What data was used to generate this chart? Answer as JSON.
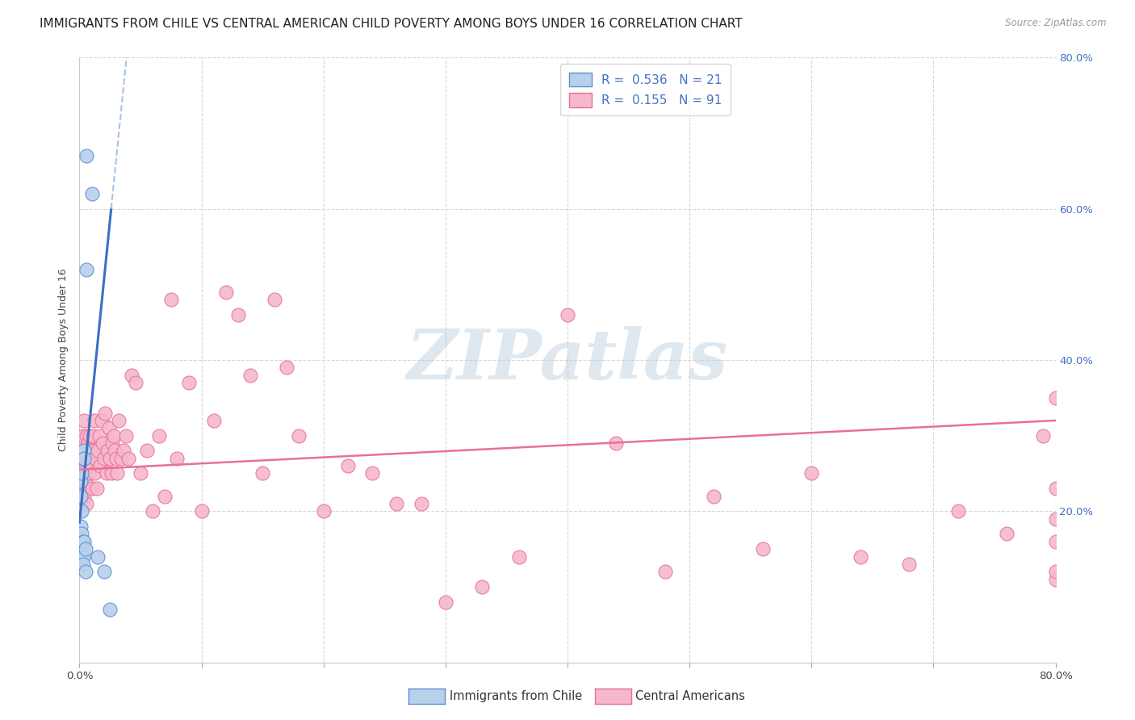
{
  "title": "IMMIGRANTS FROM CHILE VS CENTRAL AMERICAN CHILD POVERTY AMONG BOYS UNDER 16 CORRELATION CHART",
  "source": "Source: ZipAtlas.com",
  "ylabel": "Child Poverty Among Boys Under 16",
  "legend_chile_R": "0.536",
  "legend_chile_N": "21",
  "legend_ca_R": "0.155",
  "legend_ca_N": "91",
  "legend_label_chile": "Immigrants from Chile",
  "legend_label_ca": "Central Americans",
  "blue_fill": "#b8d0ea",
  "blue_edge": "#5b8fd4",
  "blue_line": "#3a6fc4",
  "pink_fill": "#f5b8cc",
  "pink_edge": "#e87098",
  "pink_line": "#e87098",
  "dash_color": "#aac4e0",
  "scatter_chile_x": [
    0.001,
    0.001,
    0.001,
    0.001,
    0.002,
    0.002,
    0.002,
    0.003,
    0.003,
    0.003,
    0.004,
    0.004,
    0.004,
    0.005,
    0.005,
    0.006,
    0.006,
    0.01,
    0.015,
    0.02,
    0.025
  ],
  "scatter_chile_y": [
    0.24,
    0.22,
    0.18,
    0.16,
    0.25,
    0.2,
    0.17,
    0.16,
    0.14,
    0.13,
    0.28,
    0.27,
    0.16,
    0.15,
    0.12,
    0.52,
    0.67,
    0.62,
    0.14,
    0.12,
    0.07
  ],
  "scatter_ca_x": [
    0.001,
    0.001,
    0.002,
    0.002,
    0.003,
    0.003,
    0.004,
    0.004,
    0.005,
    0.005,
    0.006,
    0.006,
    0.007,
    0.007,
    0.008,
    0.008,
    0.009,
    0.01,
    0.01,
    0.011,
    0.011,
    0.012,
    0.012,
    0.013,
    0.014,
    0.015,
    0.016,
    0.017,
    0.018,
    0.019,
    0.02,
    0.021,
    0.022,
    0.023,
    0.024,
    0.025,
    0.026,
    0.027,
    0.028,
    0.029,
    0.03,
    0.031,
    0.032,
    0.034,
    0.036,
    0.038,
    0.04,
    0.043,
    0.046,
    0.05,
    0.055,
    0.06,
    0.065,
    0.07,
    0.075,
    0.08,
    0.09,
    0.1,
    0.11,
    0.12,
    0.13,
    0.14,
    0.15,
    0.16,
    0.17,
    0.18,
    0.2,
    0.22,
    0.24,
    0.26,
    0.28,
    0.3,
    0.33,
    0.36,
    0.4,
    0.44,
    0.48,
    0.52,
    0.56,
    0.6,
    0.64,
    0.68,
    0.72,
    0.76,
    0.79,
    0.8,
    0.8,
    0.8,
    0.8,
    0.8,
    0.8
  ],
  "scatter_ca_y": [
    0.26,
    0.24,
    0.28,
    0.23,
    0.3,
    0.27,
    0.32,
    0.22,
    0.26,
    0.24,
    0.3,
    0.21,
    0.29,
    0.27,
    0.3,
    0.25,
    0.26,
    0.28,
    0.23,
    0.3,
    0.28,
    0.32,
    0.25,
    0.27,
    0.23,
    0.28,
    0.3,
    0.26,
    0.32,
    0.29,
    0.27,
    0.33,
    0.25,
    0.28,
    0.31,
    0.27,
    0.25,
    0.29,
    0.3,
    0.28,
    0.27,
    0.25,
    0.32,
    0.27,
    0.28,
    0.3,
    0.27,
    0.38,
    0.37,
    0.25,
    0.28,
    0.2,
    0.3,
    0.22,
    0.48,
    0.27,
    0.37,
    0.2,
    0.32,
    0.49,
    0.46,
    0.38,
    0.25,
    0.48,
    0.39,
    0.3,
    0.2,
    0.26,
    0.25,
    0.21,
    0.21,
    0.08,
    0.1,
    0.14,
    0.46,
    0.29,
    0.12,
    0.22,
    0.15,
    0.25,
    0.14,
    0.13,
    0.2,
    0.17,
    0.3,
    0.35,
    0.19,
    0.16,
    0.11,
    0.12,
    0.23
  ],
  "xlim": [
    0.0,
    0.8
  ],
  "ylim": [
    0.0,
    0.8
  ],
  "watermark_text": "ZIPatlas",
  "background_color": "#ffffff",
  "grid_color": "#d8d8d8",
  "title_fontsize": 11,
  "axis_label_fontsize": 9,
  "tick_fontsize": 9.5,
  "right_tick_color": "#4472c4",
  "legend_R_N_color": "#4472c4"
}
